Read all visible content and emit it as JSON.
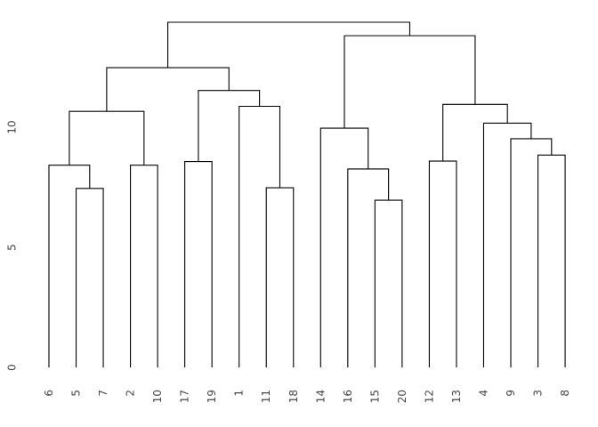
{
  "figure": {
    "background_color": "#ffffff",
    "line_color": "#000000",
    "label_color": "#474747"
  },
  "chart_data": {
    "type": "dendrogram",
    "title": "",
    "xlabel": "",
    "ylabel": "",
    "grid": false,
    "orientation": "vertical",
    "leaf_labels": [
      "6",
      "5",
      "7",
      "2",
      "10",
      "17",
      "19",
      "1",
      "11",
      "18",
      "14",
      "16",
      "15",
      "20",
      "12",
      "13",
      "4",
      "9",
      "3",
      "8"
    ],
    "yticks": [
      0,
      5,
      10
    ],
    "ytick_labels": [
      "0",
      "5",
      "10"
    ],
    "ylim": [
      0,
      14.4
    ],
    "leaf_base_value": 0,
    "merges": [
      {
        "children": [
          -2,
          -3
        ],
        "height": 7.45
      },
      {
        "children": [
          -1,
          1
        ],
        "height": 8.42
      },
      {
        "children": [
          -4,
          -5
        ],
        "height": 8.42
      },
      {
        "children": [
          2,
          3
        ],
        "height": 10.66
      },
      {
        "children": [
          -6,
          -7
        ],
        "height": 8.57
      },
      {
        "children": [
          -9,
          -10
        ],
        "height": 7.48
      },
      {
        "children": [
          -8,
          6
        ],
        "height": 10.87
      },
      {
        "children": [
          5,
          7
        ],
        "height": 11.53
      },
      {
        "children": [
          4,
          8
        ],
        "height": 12.48
      },
      {
        "children": [
          -13,
          -14
        ],
        "height": 6.96
      },
      {
        "children": [
          -12,
          10
        ],
        "height": 8.26
      },
      {
        "children": [
          -11,
          11
        ],
        "height": 9.96
      },
      {
        "children": [
          -15,
          -16
        ],
        "height": 8.59
      },
      {
        "children": [
          -19,
          -20
        ],
        "height": 8.84
      },
      {
        "children": [
          -18,
          14
        ],
        "height": 9.52
      },
      {
        "children": [
          -17,
          15
        ],
        "height": 10.17
      },
      {
        "children": [
          13,
          16
        ],
        "height": 10.95
      },
      {
        "children": [
          12,
          17
        ],
        "height": 13.81
      },
      {
        "children": [
          9,
          18
        ],
        "height": 14.37
      }
    ]
  }
}
